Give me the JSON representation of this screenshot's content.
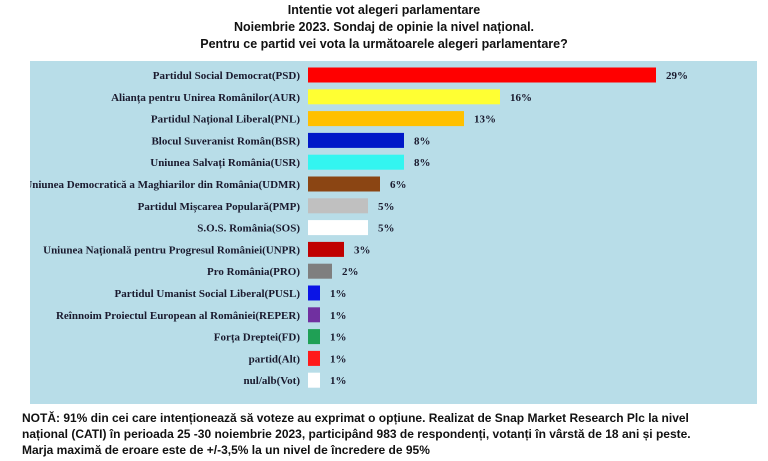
{
  "chart_data": {
    "type": "bar",
    "orientation": "horizontal",
    "title_lines": [
      "Intentie vot alegeri parlamentare",
      "Noiembrie 2023. Sondaj de opinie la nivel național.",
      "Pentru ce partid vei vota la următoarele alegeri parlamentare?"
    ],
    "unit": "%",
    "xlim": [
      0,
      30
    ],
    "grid": false,
    "background_color": "#b8dde8",
    "categories": [
      "Partidul Social Democrat(PSD)",
      "Alianța pentru Unirea Românilor(AUR)",
      "Partidul Național Liberal(PNL)",
      "Blocul Suveranist Român(BSR)",
      "Uniunea Salvați România(USR)",
      "Uniunea Democratică a Maghiarilor din România(UDMR)",
      "Partidul Mișcarea Populară(PMP)",
      "S.O.S. România(SOS)",
      "Uniunea Națională pentru Progresul României(UNPR)",
      "Pro România(PRO)",
      "Partidul Umanist Social Liberal(PUSL)",
      "Reînnoim Proiectul European al României(REPER)",
      "Forța Dreptei(FD)",
      "partid(Alt)",
      "nul/alb(Vot)"
    ],
    "values": [
      29,
      16,
      13,
      8,
      8,
      6,
      5,
      5,
      3,
      2,
      1,
      1,
      1,
      1,
      1
    ],
    "data_labels": [
      "29%",
      "16%",
      "13%",
      "8%",
      "8%",
      "6%",
      "5%",
      "5%",
      "3%",
      "2%",
      "1%",
      "1%",
      "1%",
      "1%",
      "1%"
    ],
    "colors": [
      "#ff0000",
      "#ffff33",
      "#ffc000",
      "#0018c8",
      "#33f5f0",
      "#8b4513",
      "#c0c0c0",
      "#ffffff",
      "#c00000",
      "#7f7f7f",
      "#0a14e6",
      "#7030a0",
      "#1fa055",
      "#ff1a1a",
      "#ffffff"
    ]
  },
  "note_lines": [
    "NOTĂ: 91% din cei care intenționează să voteze au exprimat o opțiune. Realizat de Snap Market Research Plc la nivel",
    "național (CATI) în perioada 25 -30 noiembrie 2023, participând 983 de respondenți, votanți în vârstă de 18 ani și peste.",
    "Marja maximă de eroare este de +/-3,5% la un nivel de încredere de 95%"
  ]
}
